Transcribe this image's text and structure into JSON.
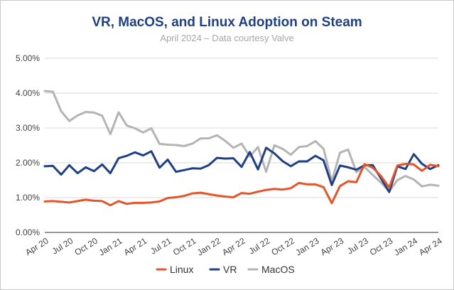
{
  "chart_data": {
    "type": "line",
    "title": "VR, MacOS, and Linux Adoption on Steam",
    "subtitle": "April 2024 – Data courtesy Valve",
    "xlabel": "",
    "ylabel": "",
    "ylim": [
      0,
      5
    ],
    "y_ticks": [
      "0.00%",
      "1.00%",
      "2.00%",
      "3.00%",
      "4.00%",
      "5.00%"
    ],
    "y_tick_values": [
      0,
      1,
      2,
      3,
      4,
      5
    ],
    "x_ticks": [
      "Apr 20",
      "Jul 20",
      "Oct 20",
      "Jan 21",
      "Apr 21",
      "Jul 21",
      "Oct 21",
      "Jan 22",
      "Apr 22",
      "Jul 22",
      "Oct 22",
      "Jan 23",
      "Apr 23",
      "Jul 23",
      "Oct 23",
      "Jan 24",
      "Apr 24"
    ],
    "x_tick_indices": [
      0,
      3,
      6,
      9,
      12,
      15,
      18,
      21,
      24,
      27,
      30,
      33,
      36,
      39,
      42,
      45,
      48
    ],
    "grid": true,
    "legend_position": "bottom",
    "series": [
      {
        "name": "Linux",
        "color": "#e8542a",
        "values": [
          0.89,
          0.9,
          0.88,
          0.86,
          0.9,
          0.94,
          0.91,
          0.9,
          0.78,
          0.9,
          0.82,
          0.85,
          0.85,
          0.86,
          0.89,
          0.99,
          1.01,
          1.05,
          1.12,
          1.14,
          1.1,
          1.06,
          1.03,
          1.01,
          1.13,
          1.11,
          1.17,
          1.22,
          1.25,
          1.23,
          1.27,
          1.42,
          1.38,
          1.38,
          1.3,
          0.84,
          1.33,
          1.47,
          1.44,
          1.96,
          1.86,
          1.62,
          1.29,
          1.92,
          1.97,
          1.95,
          1.77,
          1.94,
          1.9
        ]
      },
      {
        "name": "VR",
        "color": "#1f3f86",
        "values": [
          1.9,
          1.91,
          1.66,
          1.93,
          1.7,
          1.87,
          1.76,
          1.95,
          1.7,
          2.13,
          2.2,
          2.3,
          2.21,
          2.33,
          1.86,
          2.09,
          1.74,
          1.79,
          1.84,
          1.83,
          1.93,
          2.14,
          2.12,
          2.13,
          1.88,
          2.31,
          1.81,
          2.43,
          2.27,
          2.05,
          1.9,
          2.04,
          2.04,
          2.2,
          2.07,
          1.36,
          1.92,
          1.87,
          1.8,
          1.93,
          1.93,
          1.55,
          1.16,
          1.9,
          1.82,
          2.25,
          1.97,
          1.82,
          1.93
        ]
      },
      {
        "name": "MacOS",
        "color": "#b4b4b4",
        "values": [
          4.06,
          4.04,
          3.48,
          3.2,
          3.36,
          3.46,
          3.44,
          3.35,
          2.82,
          3.45,
          3.07,
          2.99,
          2.87,
          2.99,
          2.54,
          2.52,
          2.51,
          2.48,
          2.55,
          2.7,
          2.7,
          2.79,
          2.63,
          2.43,
          2.55,
          2.18,
          2.45,
          1.74,
          2.5,
          2.4,
          2.23,
          2.45,
          2.48,
          2.62,
          2.4,
          1.47,
          2.29,
          2.38,
          1.73,
          1.88,
          1.65,
          1.43,
          1.18,
          1.5,
          1.62,
          1.52,
          1.32,
          1.37,
          1.34
        ]
      }
    ]
  }
}
